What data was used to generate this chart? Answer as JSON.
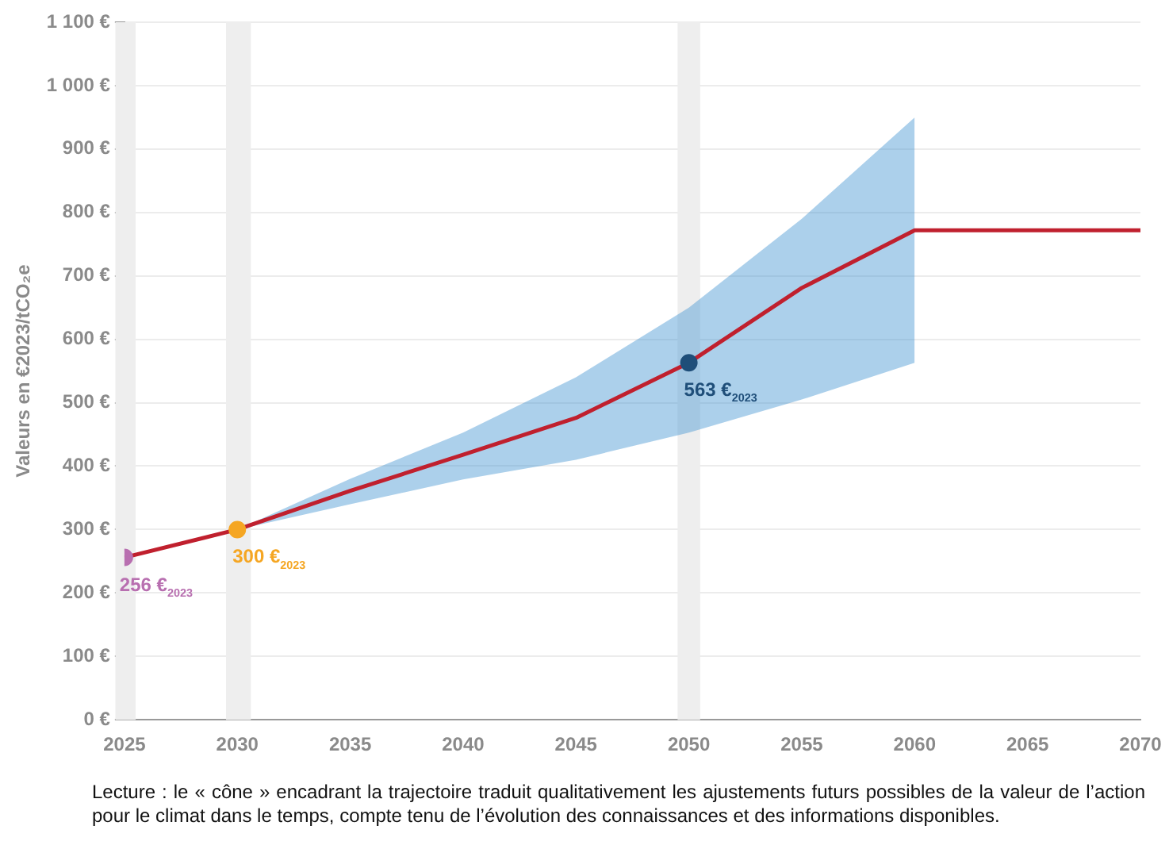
{
  "chart_data": {
    "type": "line",
    "ylabel": "Valeurs en €2023/tCO₂e",
    "xlim": [
      2025,
      2070
    ],
    "xticks": [
      2025,
      2030,
      2035,
      2040,
      2045,
      2050,
      2055,
      2060,
      2065,
      2070
    ],
    "ylim": [
      0,
      1100
    ],
    "yticks": [
      {
        "value": 0,
        "label": "0 €"
      },
      {
        "value": 100,
        "label": "100 €"
      },
      {
        "value": 200,
        "label": "200 €"
      },
      {
        "value": 300,
        "label": "300 €"
      },
      {
        "value": 400,
        "label": "400 €"
      },
      {
        "value": 500,
        "label": "500 €"
      },
      {
        "value": 600,
        "label": "600 €"
      },
      {
        "value": 700,
        "label": "700 €"
      },
      {
        "value": 800,
        "label": "800 €"
      },
      {
        "value": 900,
        "label": "900 €"
      },
      {
        "value": 1000,
        "label": "1 000 €"
      },
      {
        "value": 1100,
        "label": "1 100 €"
      }
    ],
    "grid": "y",
    "legend": false,
    "marker": "none",
    "line_style": "solid",
    "bands": [
      {
        "axis": "x",
        "from": 2024.6,
        "to": 2025.5,
        "color": "#eeeeee"
      },
      {
        "axis": "x",
        "from": 2029.5,
        "to": 2030.6,
        "color": "#eeeeee"
      },
      {
        "axis": "x",
        "from": 2049.5,
        "to": 2050.5,
        "color": "#eeeeee"
      }
    ],
    "series": [
      {
        "color": "#c0202e",
        "x": [
          2025,
          2030,
          2035,
          2040,
          2045,
          2050,
          2055,
          2060,
          2070
        ],
        "values": [
          256,
          300,
          361,
          418,
          476,
          563,
          681,
          772,
          772
        ],
        "lower": [
          null,
          300,
          340,
          379,
          410,
          453,
          505,
          563,
          null
        ],
        "upper": [
          null,
          300,
          380,
          453,
          540,
          650,
          790,
          950,
          null
        ]
      },
      {
        "type": "scatter",
        "marker": "circle",
        "x": [
          2025,
          2030,
          2050
        ],
        "values": [
          256,
          300,
          563
        ],
        "colors": [
          "#b86fb0",
          "#f5a623",
          "#1f4e79"
        ],
        "value_labels": [
          "256 €$_{2023}$",
          "300 €$_{2023}$",
          "563 €$_{2023}$"
        ]
      }
    ],
    "annotations": [
      "Lecture : le « cône » encadrant la trajectoire traduit qualitativement les ajustements futurs possibles de la valeur de l’action pour le climat dans le temps, compte tenu de l’évolution des connaissances et des informations disponibles."
    ]
  }
}
